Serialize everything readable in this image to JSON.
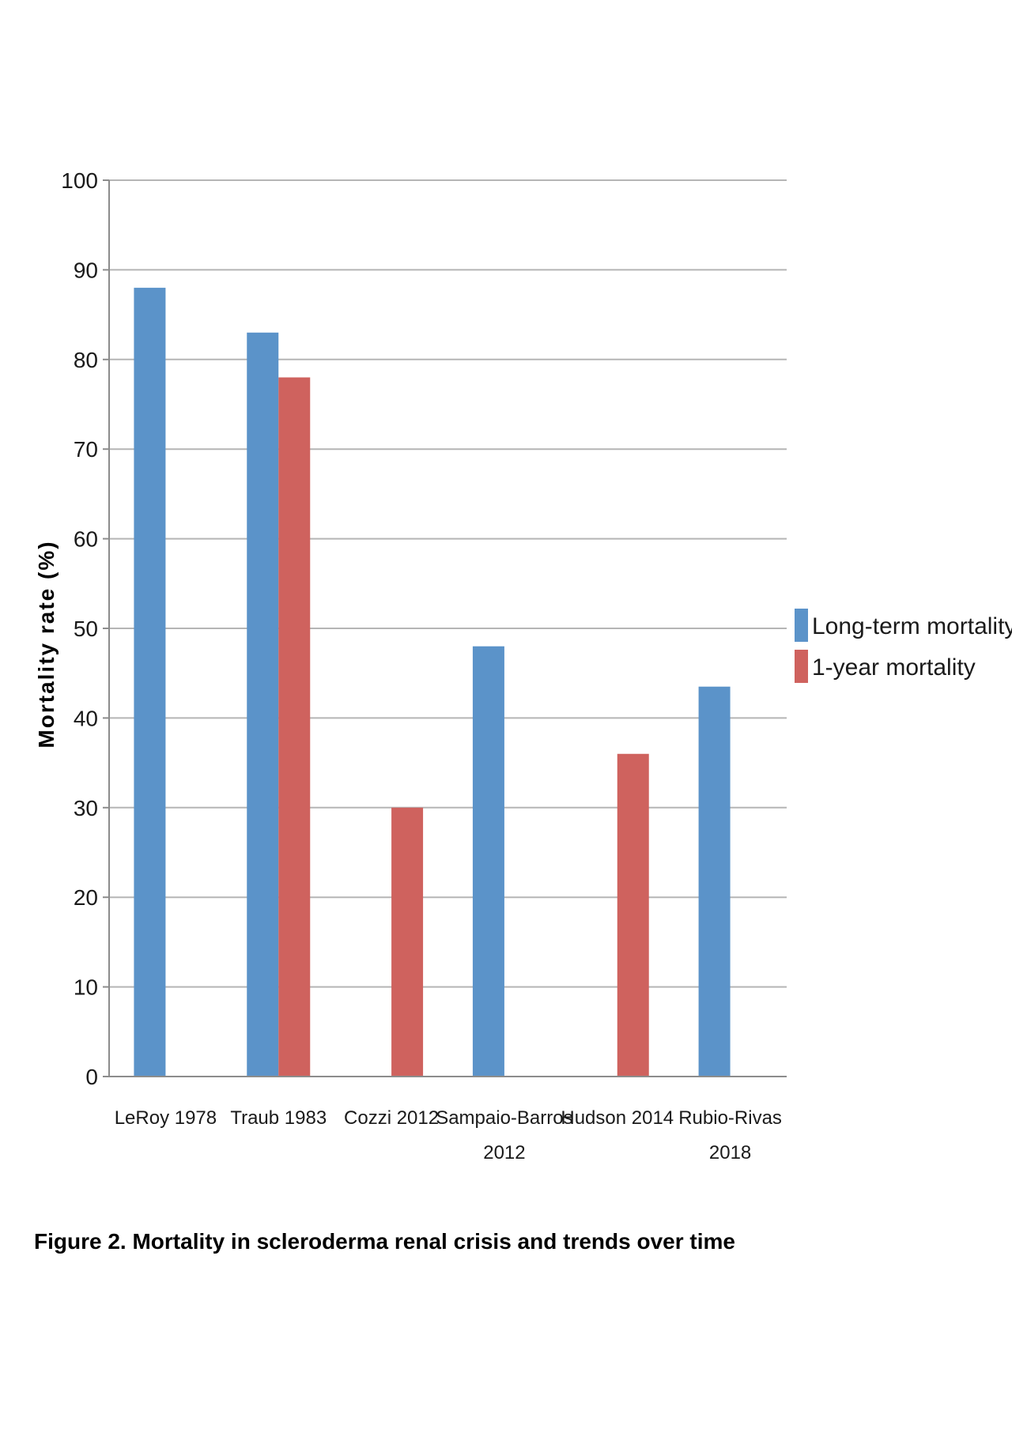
{
  "chart_data": {
    "type": "bar",
    "categories": [
      [
        "LeRoy 1978"
      ],
      [
        "Traub 1983"
      ],
      [
        "Cozzi 2012"
      ],
      [
        "Sampaio-Barros",
        "2012"
      ],
      [
        "Hudson 2014"
      ],
      [
        "Rubio-Rivas",
        "2018"
      ]
    ],
    "series": [
      {
        "name": "Long-term mortality",
        "color": "#5b93c9",
        "values": [
          88,
          83,
          null,
          48,
          null,
          43.5
        ]
      },
      {
        "name": "1-year mortality",
        "color": "#cf625e",
        "values": [
          null,
          78,
          30,
          null,
          36,
          null
        ]
      }
    ],
    "ylabel": "Mortality rate (%)",
    "xlabel": "",
    "ylim": [
      0,
      100
    ],
    "yticks": [
      0,
      10,
      20,
      30,
      40,
      50,
      60,
      70,
      80,
      90,
      100
    ],
    "grid": true,
    "legend_position": "right"
  },
  "caption": "Figure 2. Mortality in scleroderma renal crisis and trends over time"
}
